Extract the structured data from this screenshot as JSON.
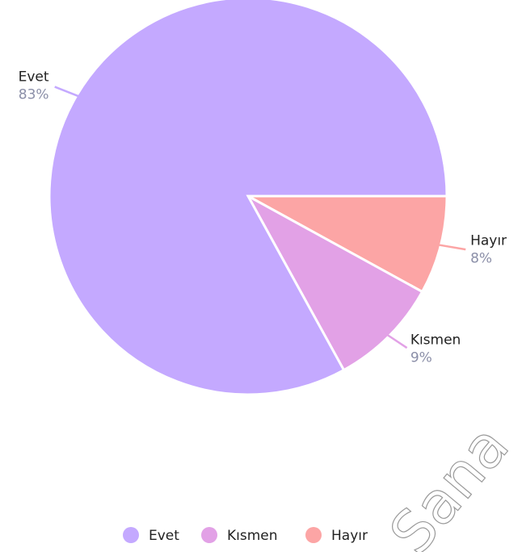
{
  "chart_data": {
    "type": "pie",
    "categories": [
      "Evet",
      "Kısmen",
      "Hayır"
    ],
    "values": [
      83,
      9,
      8
    ],
    "value_labels": [
      "83%",
      "9%",
      "8%"
    ],
    "colors": [
      "#c4a9ff",
      "#e2a1e6",
      "#fca5a5"
    ],
    "legend": "bottom"
  },
  "watermark": "Sana"
}
